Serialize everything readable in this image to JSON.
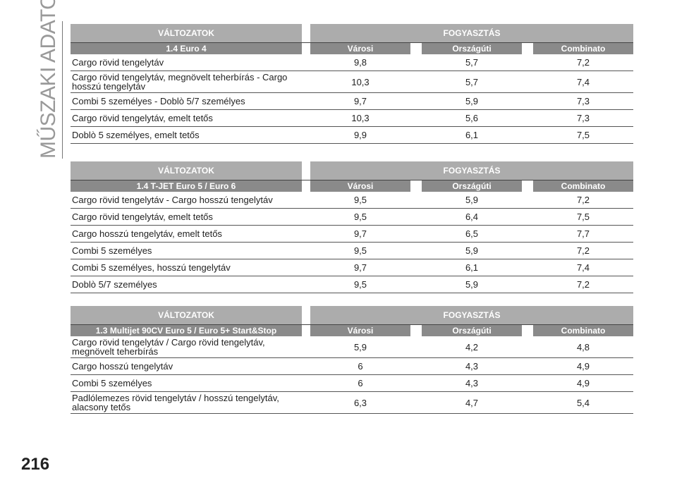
{
  "side_title": "MŰSZAKI ADATOK",
  "page_number": "216",
  "tables": [
    {
      "header": [
        "VÁLTOZATOK",
        "FOGYASZTÁS"
      ],
      "subheader": [
        "1.4 Euro 4",
        "Városi",
        "Országúti",
        "Combinato"
      ],
      "rows": [
        [
          "Cargo rövid tengelytáv",
          "9,8",
          "5,7",
          "7,2"
        ],
        [
          "Cargo rövid tengelytáv, megnövelt teherbírás - Cargo hosszú tengelytáv",
          "10,3",
          "5,7",
          "7,4"
        ],
        [
          "Combi 5 személyes - Doblò 5/7 személyes",
          "9,7",
          "5,9",
          "7,3"
        ],
        [
          "Cargo rövid tengelytáv, emelt tetős",
          "10,3",
          "5,6",
          "7,3"
        ],
        [
          "Doblò 5 személyes, emelt tetős",
          "9,9",
          "6,1",
          "7,5"
        ]
      ]
    },
    {
      "header": [
        "VÁLTOZATOK",
        "FOGYASZTÁS"
      ],
      "subheader": [
        "1.4 T-JET Euro 5 / Euro 6",
        "Városi",
        "Országúti",
        "Combinato"
      ],
      "rows": [
        [
          "Cargo rövid tengelytáv - Cargo hosszú tengelytáv",
          "9,5",
          "5,9",
          "7,2"
        ],
        [
          "Cargo rövid tengelytáv, emelt tetős",
          "9,5",
          "6,4",
          "7,5"
        ],
        [
          "Cargo hosszú tengelytáv, emelt tetős",
          "9,7",
          "6,5",
          "7,7"
        ],
        [
          "Combi 5 személyes",
          "9,5",
          "5,9",
          "7,2"
        ],
        [
          "Combi 5 személyes, hosszú tengelytáv",
          "9,7",
          "6,1",
          "7,4"
        ],
        [
          "Doblò 5/7 személyes",
          "9,5",
          "5,9",
          "7,2"
        ]
      ]
    },
    {
      "header": [
        "VÁLTOZATOK",
        "FOGYASZTÁS"
      ],
      "subheader": [
        "1.3 Multijet 90CV Euro 5 / Euro 5+ Start&Stop",
        "Városi",
        "Országúti",
        "Combinato"
      ],
      "rows": [
        [
          "Cargo rövid tengelytáv / Cargo rövid tengelytáv, megnövelt teherbírás",
          "5,9",
          "4,2",
          "4,8"
        ],
        [
          "Cargo hosszú tengelytáv",
          "6",
          "4,3",
          "4,9"
        ],
        [
          "Combi 5 személyes",
          "6",
          "4,3",
          "4,9"
        ],
        [
          "Padlólemezes rövid tengelytáv / hosszú tengelytáv, alacsony tetős",
          "6,3",
          "4,7",
          "5,4"
        ]
      ]
    }
  ]
}
